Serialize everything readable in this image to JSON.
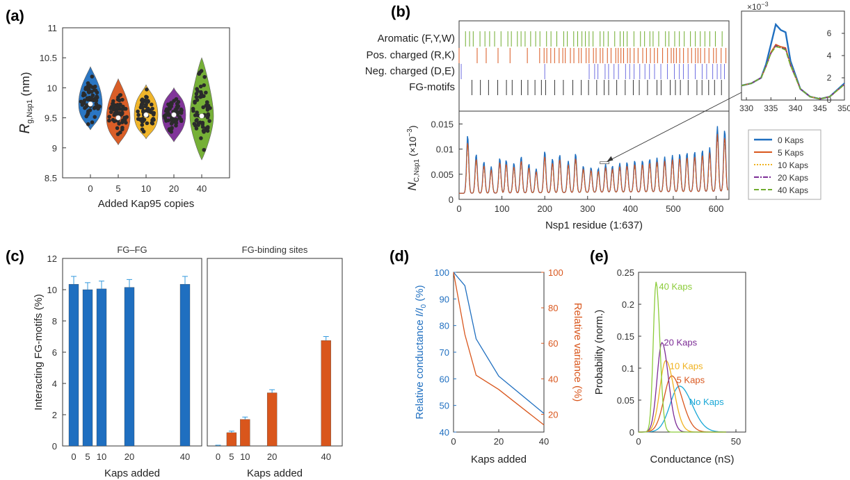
{
  "colors": {
    "blue": "#1f6fc0",
    "orange": "#d9561c",
    "yellow": "#f0b21f",
    "purple": "#7b2b95",
    "green": "#6fac2d",
    "cyan": "#18a7d6",
    "light_green": "#8ccc3a",
    "axis": "#333333",
    "dot": "#2b2b2b"
  },
  "chart_data": [
    {
      "panel": "(a)",
      "type": "violin",
      "title": "",
      "xlabel": "Added Kap95 copies",
      "ylabel": "R",
      "ylabel_sub": "g,Nsp1",
      "ylabel_unit": " (nm)",
      "categories": [
        "0",
        "5",
        "10",
        "20",
        "40"
      ],
      "medians": [
        9.73,
        9.5,
        9.55,
        9.55,
        9.53
      ],
      "ranges": [
        [
          9.3,
          10.35
        ],
        [
          9.05,
          10.15
        ],
        [
          9.15,
          10.05
        ],
        [
          9.1,
          10.0
        ],
        [
          8.8,
          10.5
        ]
      ],
      "ylim": [
        8.5,
        11
      ],
      "yticks": [
        "8.5",
        "9",
        "9.5",
        "10",
        "10.5",
        "11"
      ],
      "series_colors": [
        "blue",
        "orange",
        "yellow",
        "purple",
        "green"
      ]
    },
    {
      "panel": "(b)",
      "type": "line",
      "track_labels": [
        "Aromatic (F,Y,W)",
        "Pos. charged (R,K)",
        "Neg. charged (D,E)",
        "FG-motifs"
      ],
      "xlabel": "Nsp1 residue (1:637)",
      "ylabel": "N",
      "ylabel_sub": "C,Nsp1",
      "ylabel_unit": " (×10",
      "ylabel_exp": "−3",
      "ylabel_close": ")",
      "xlim": [
        0,
        630
      ],
      "ylim": [
        0,
        0.017
      ],
      "xticks": [
        "0",
        "100",
        "200",
        "300",
        "400",
        "500",
        "600"
      ],
      "yticks": [
        "0",
        "0.005",
        "0.01",
        "0.015"
      ],
      "legend": [
        "0 Kaps",
        "5 Kaps",
        "10 Kaps",
        "20 Kaps",
        "40 Kaps"
      ],
      "legend_position": "right",
      "series": [
        {
          "name": "0 Kaps",
          "peak_residues": [
            20,
            40,
            58,
            75,
            95,
            110,
            128,
            145,
            163,
            180,
            200,
            218,
            235,
            255,
            272,
            290,
            308,
            325,
            342,
            358,
            375,
            392,
            410,
            428,
            445,
            462,
            480,
            498,
            515,
            532,
            550,
            568,
            585,
            603,
            620
          ],
          "peak_values": [
            0.0128,
            0.009,
            0.0075,
            0.0065,
            0.0082,
            0.0078,
            0.0072,
            0.0085,
            0.007,
            0.006,
            0.0095,
            0.008,
            0.0088,
            0.0075,
            0.009,
            0.0065,
            0.0062,
            0.006,
            0.0068,
            0.0065,
            0.007,
            0.0072,
            0.0075,
            0.0075,
            0.0078,
            0.008,
            0.0082,
            0.0085,
            0.0088,
            0.009,
            0.0092,
            0.0095,
            0.01,
            0.0142,
            0.0135
          ]
        }
      ],
      "inset": {
        "xlim": [
          329,
          350
        ],
        "ylim": [
          0,
          7
        ],
        "xticks": [
          "330",
          "335",
          "340",
          "345",
          "350"
        ],
        "yticks": [
          "0",
          "2",
          "4",
          "6"
        ],
        "multiplier": "×10",
        "multiplier_exp": "−3",
        "x": [
          329,
          331,
          333,
          334,
          335,
          336,
          337,
          338,
          339,
          341,
          343,
          345,
          347,
          350
        ],
        "series": [
          {
            "name": "0 Kaps",
            "values": [
              1.3,
              1.5,
              2.0,
              3.2,
              5.0,
              6.8,
              6.3,
              6.1,
              3.5,
              1.0,
              0.3,
              0.1,
              0.3,
              1.5
            ]
          },
          {
            "name": "5 Kaps",
            "values": [
              1.3,
              1.5,
              2.0,
              3.0,
              4.3,
              5.0,
              4.8,
              4.7,
              3.2,
              1.0,
              0.3,
              0.1,
              0.3,
              1.4
            ]
          },
          {
            "name": "10 Kaps",
            "values": [
              1.3,
              1.5,
              2.0,
              3.0,
              4.2,
              4.9,
              4.7,
              4.6,
              3.2,
              1.0,
              0.3,
              0.1,
              0.3,
              1.4
            ]
          },
          {
            "name": "20 Kaps",
            "values": [
              1.3,
              1.5,
              2.0,
              3.0,
              4.2,
              4.9,
              4.7,
              4.6,
              3.1,
              1.0,
              0.3,
              0.1,
              0.3,
              1.4
            ]
          },
          {
            "name": "40 Kaps",
            "values": [
              1.3,
              1.5,
              2.0,
              3.0,
              4.2,
              4.8,
              4.7,
              4.5,
              3.1,
              1.0,
              0.3,
              0.1,
              0.3,
              1.4
            ]
          }
        ]
      }
    },
    {
      "panel": "(c)",
      "type": "bar",
      "ylabel": "Interacting FG-motifs (%)",
      "xlabel": "Kaps added",
      "ylim": [
        0,
        12
      ],
      "yticks": [
        "0",
        "2",
        "4",
        "6",
        "8",
        "10",
        "12"
      ],
      "subplots": [
        {
          "title": "FG–FG",
          "categories": [
            "0",
            "5",
            "10",
            "20",
            "40"
          ],
          "x": [
            0,
            5,
            10,
            20,
            40
          ],
          "values": [
            10.35,
            10.0,
            10.05,
            10.15,
            10.35
          ],
          "errors": [
            0.5,
            0.45,
            0.5,
            0.5,
            0.5
          ],
          "color": "blue"
        },
        {
          "title": "FG-binding sites",
          "categories": [
            "0",
            "5",
            "10",
            "20",
            "40"
          ],
          "x": [
            0,
            5,
            10,
            20,
            40
          ],
          "values": [
            0.0,
            0.85,
            1.7,
            3.4,
            6.75
          ],
          "errors": [
            0.05,
            0.1,
            0.15,
            0.2,
            0.25
          ],
          "color": "orange"
        }
      ]
    },
    {
      "panel": "(d)",
      "type": "line",
      "xlabel": "Kaps added",
      "ylabel_left": "Relative conductance ",
      "ylabel_left_it": "I/I",
      "ylabel_left_sub": "0",
      "ylabel_left_unit": " (%)",
      "ylabel_right": "Relative variance  (%)",
      "xlim": [
        0,
        40
      ],
      "ylim_left": [
        40,
        100
      ],
      "ylim_right": [
        10,
        100
      ],
      "xticks": [
        "0",
        "20",
        "40"
      ],
      "yticks_left": [
        "40",
        "50",
        "60",
        "70",
        "80",
        "90",
        "100"
      ],
      "yticks_right": [
        "20",
        "40",
        "60",
        "80",
        "100"
      ],
      "x": [
        0,
        5,
        10,
        20,
        40
      ],
      "series": [
        {
          "name": "",
          "axis": "left",
          "values": [
            100,
            95,
            75,
            61,
            47
          ],
          "color": "blue"
        },
        {
          "name": "",
          "axis": "right",
          "values": [
            100,
            65,
            42,
            34,
            14
          ],
          "color": "orange"
        }
      ]
    },
    {
      "panel": "(e)",
      "type": "line",
      "xlabel": "Conductance (nS)",
      "ylabel": "Probability (norm.)",
      "xlim": [
        0,
        55
      ],
      "ylim": [
        0,
        0.25
      ],
      "xticks": [
        "0",
        "50"
      ],
      "yticks": [
        "0",
        "0.05",
        "0.1",
        "0.15",
        "0.2",
        "0.25"
      ],
      "series": [
        {
          "name": "No Kaps",
          "mean": 21,
          "sd": 5.6,
          "peak": 0.072,
          "color": "cyan",
          "label_at": [
            26,
            0.048
          ]
        },
        {
          "name": "5 Kaps",
          "mean": 17,
          "sd": 4.6,
          "peak": 0.088,
          "color": "orange",
          "label_at": [
            19.5,
            0.082
          ]
        },
        {
          "name": "10 Kaps",
          "mean": 14,
          "sd": 3.6,
          "peak": 0.112,
          "color": "yellow",
          "label_at": [
            16,
            0.104
          ]
        },
        {
          "name": "20 Kaps",
          "mean": 12,
          "sd": 2.9,
          "peak": 0.14,
          "color": "purple",
          "label_at": [
            13,
            0.141
          ]
        },
        {
          "name": "40 Kaps",
          "mean": 9,
          "sd": 1.7,
          "peak": 0.235,
          "color": "light_green",
          "label_at": [
            10.5,
            0.228
          ]
        }
      ]
    }
  ]
}
